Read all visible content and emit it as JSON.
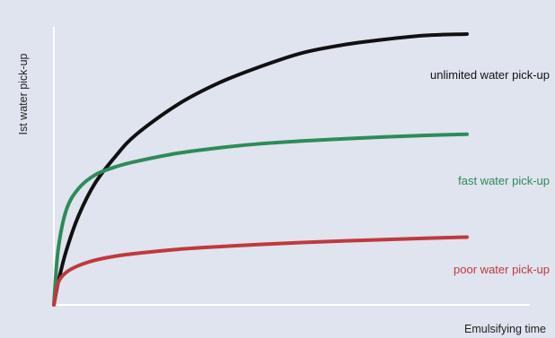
{
  "chart_data": {
    "type": "line",
    "title": "",
    "xlabel": "Emulsifying time",
    "ylabel": "Ist water pick-up",
    "xlim": [
      0,
      100
    ],
    "ylim": [
      0,
      100
    ],
    "grid": false,
    "legend": "inline-right",
    "x": [
      0,
      1,
      3,
      6,
      10,
      15,
      20,
      30,
      40,
      50,
      60,
      70,
      80,
      90,
      100
    ],
    "series": [
      {
        "name": "unlimited water pick-up",
        "color": "#111111",
        "values": [
          0,
          8,
          20,
          33,
          45,
          55,
          63,
          74,
          82,
          88,
          93,
          96,
          98,
          99.5,
          100
        ]
      },
      {
        "name": "fast water pick-up",
        "color": "#2e8b5a",
        "values": [
          0,
          20,
          35,
          43,
          48,
          51,
          53,
          56,
          58,
          59.5,
          60.5,
          61.3,
          62,
          62.6,
          63
        ]
      },
      {
        "name": "poor water pick-up",
        "color": "#c0393d",
        "values": [
          0,
          8,
          12,
          14.5,
          16.5,
          18,
          19,
          20.5,
          21.5,
          22.3,
          23,
          23.6,
          24.1,
          24.6,
          25
        ]
      }
    ]
  }
}
